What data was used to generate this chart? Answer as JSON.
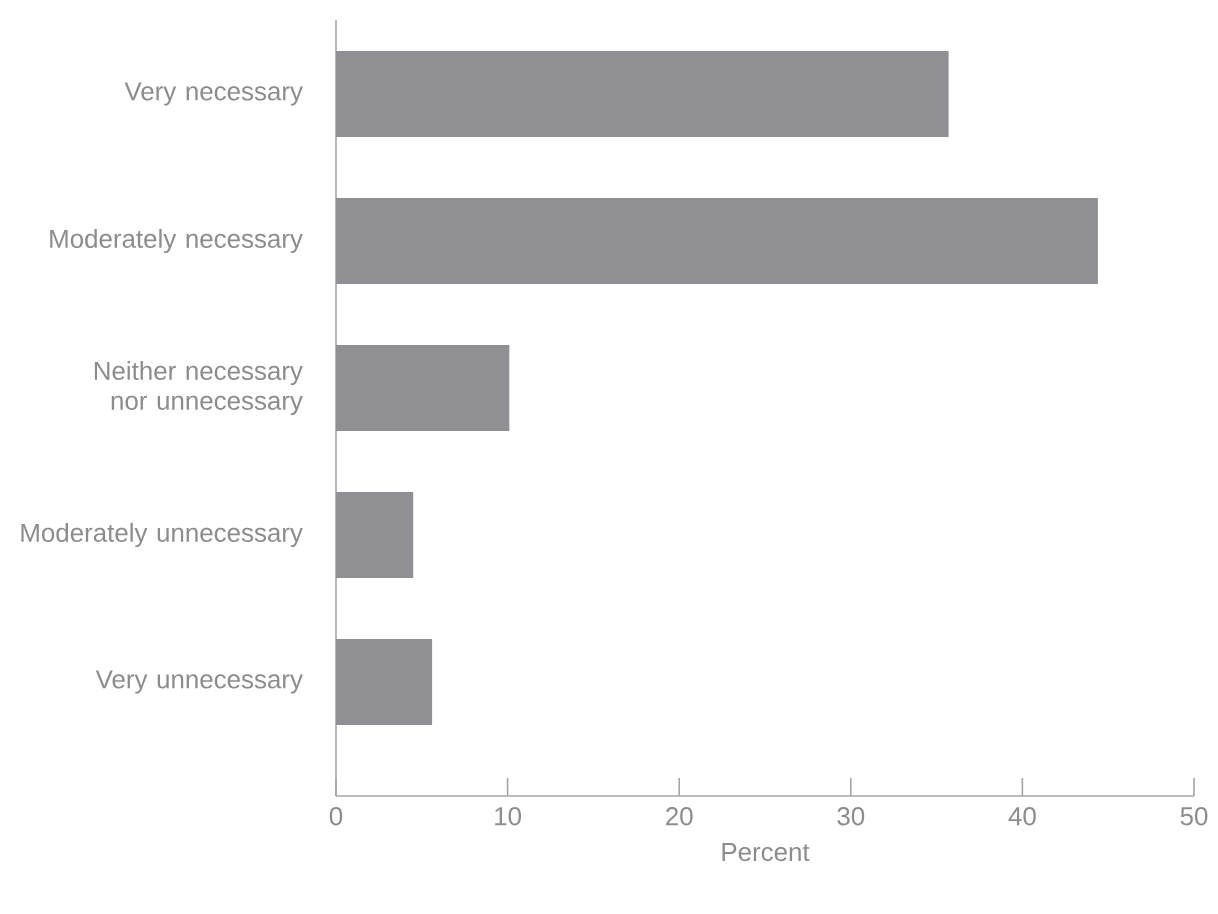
{
  "chart_data": {
    "type": "bar",
    "orientation": "horizontal",
    "categories": [
      "Very necessary",
      "Moderately necessary",
      "Neither necessary nor unnecessary",
      "Moderately unnecessary",
      "Very unnecessary"
    ],
    "values": [
      35.7,
      44.4,
      10.1,
      4.5,
      5.6
    ],
    "color": "#909094",
    "xlabel": "Percent",
    "xticks": [
      0,
      10,
      20,
      30,
      40,
      50
    ],
    "xlim": [
      0,
      50
    ]
  }
}
